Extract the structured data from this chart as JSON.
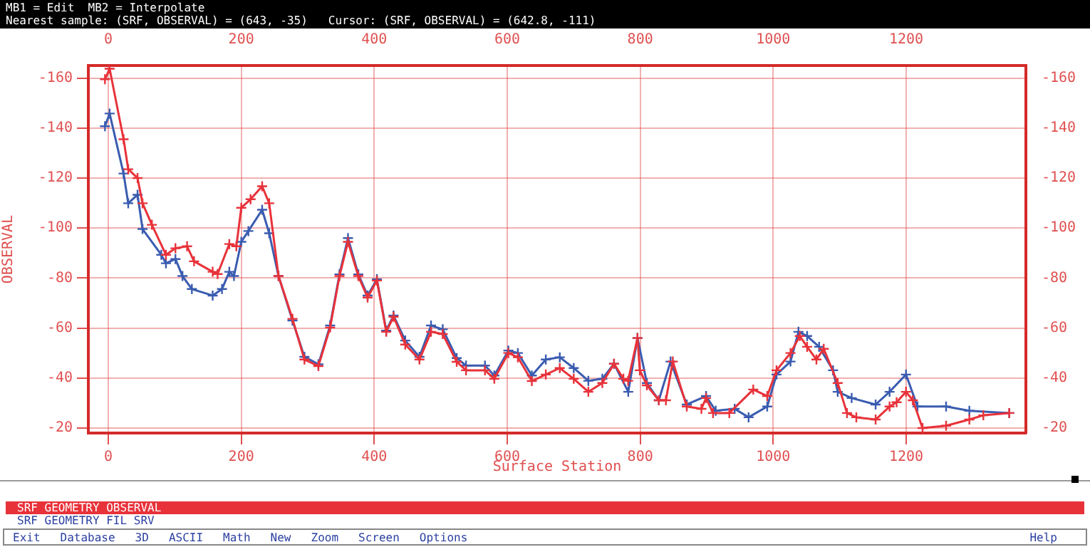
{
  "chart_data": {
    "type": "line",
    "title": "MB1 = Edit  MB2 = Interpolate",
    "subtitle": "Nearest sample: (SRF, OBSERVAL) = (643, -35)   Cursor: (SRF, OBSERVAL) = (642.8, -111)",
    "xlabel": "Surface Station",
    "ylabel": "OBSERVAL",
    "annotations": [
      "SRF GEOMETRY OBSERVAL",
      "SRF GEOMETRY FIL SRV",
      "Exit",
      "Database",
      "3D",
      "ASCII",
      "Math",
      "New",
      "Zoom",
      "Screen",
      "Options",
      "Help"
    ],
    "series": [
      {
        "color": "#e8323a",
        "marker": "cross",
        "x": [
          -5,
          2,
          23,
          30,
          44,
          51.5,
          65.6,
          86.7,
          101,
          118.5,
          129,
          157,
          164.4,
          182,
          192.6,
          200,
          214,
          231.4,
          242,
          256,
          277,
          295,
          316,
          333.6,
          347.7,
          360.5,
          376,
          390,
          404,
          418,
          429,
          446.6,
          468,
          485.4,
          503,
          524,
          538,
          566.5,
          580.6,
          601.7,
          616,
          637,
          658,
          679,
          700,
          722,
          743,
          760.6,
          774.7,
          781.8,
          795.9,
          799.4,
          810,
          828,
          838.6,
          849,
          870,
          892,
          899,
          909.5,
          934,
          970,
          991,
          1005,
          1026,
          1040,
          1051,
          1065,
          1076,
          1097,
          1111,
          1125,
          1154,
          1175,
          1185.6,
          1199.7,
          1210,
          1224.6,
          1260,
          1295,
          1316,
          1355
        ],
        "values": [
          -159.5,
          -163.7,
          -135.5,
          -123.5,
          -120,
          -109.9,
          -101.3,
          -89.3,
          -91.9,
          -92.7,
          -86.7,
          -82.5,
          -81.6,
          -93.6,
          -92.7,
          -108.1,
          -111.5,
          -116.7,
          -109.9,
          -80.8,
          -63.7,
          -47.4,
          -44.8,
          -60.2,
          -80.8,
          -94.5,
          -80.8,
          -72.2,
          -79,
          -58.5,
          -64.5,
          -53.4,
          -47.4,
          -58.5,
          -57.6,
          -46.5,
          -43.1,
          -43.1,
          -39.7,
          -50,
          -48.3,
          -38.8,
          -41.4,
          -44,
          -39.7,
          -34.5,
          -38,
          -45.7,
          -39.7,
          -38.9,
          -56,
          -43.1,
          -37.1,
          -31.1,
          -31.1,
          -46.6,
          -28.6,
          -27.7,
          -32,
          -26,
          -26,
          -35.4,
          -32.8,
          -43.1,
          -50,
          -56.8,
          -52.5,
          -47.4,
          -51.7,
          -38,
          -26,
          -24.3,
          -23.4,
          -28.6,
          -30.3,
          -34.5,
          -31.1,
          -20,
          -20.9,
          -23.4,
          -25.1,
          -26
        ]
      },
      {
        "color": "#3a5cb0",
        "marker": "cross",
        "x": [
          -5,
          2,
          23,
          30,
          44,
          51.5,
          79.7,
          86.7,
          101,
          111.6,
          125.7,
          157,
          171,
          182,
          189,
          200,
          210.7,
          231.4,
          242,
          256,
          277,
          295,
          316,
          333.6,
          347.7,
          360.5,
          376,
          390,
          404,
          418,
          429,
          446.6,
          468,
          485.4,
          503,
          524,
          538,
          566.5,
          580.6,
          601.7,
          616,
          637,
          658,
          679,
          700,
          722,
          743,
          760.6,
          782,
          795.9,
          810,
          828,
          845.6,
          870,
          899,
          913.5,
          942,
          963,
          991,
          1005,
          1026,
          1038,
          1051,
          1069,
          1090,
          1097,
          1118,
          1154,
          1175,
          1199.7,
          1217,
          1260,
          1295,
          1355
        ],
        "values": [
          -140.7,
          -145.8,
          -121.8,
          -109.9,
          -113.3,
          -99.6,
          -89.3,
          -85.9,
          -87.6,
          -80.8,
          -75.6,
          -73,
          -75.6,
          -82.5,
          -80.8,
          -94.5,
          -98.8,
          -107.3,
          -97.9,
          -80.8,
          -63,
          -48.5,
          -45.5,
          -61,
          -81.5,
          -96,
          -81.5,
          -73,
          -79.5,
          -59,
          -65,
          -55,
          -48.5,
          -61,
          -59.5,
          -48,
          -45,
          -45,
          -41,
          -51,
          -50,
          -41,
          -47.4,
          -48.3,
          -44,
          -38.9,
          -39.7,
          -45.7,
          -34.5,
          -56,
          -38,
          -31.1,
          -46.6,
          -29.4,
          -32.8,
          -26.9,
          -27.7,
          -24.3,
          -28.6,
          -41.4,
          -46.6,
          -58.5,
          -56.8,
          -52.5,
          -43.1,
          -34.5,
          -32,
          -29.4,
          -34.5,
          -41.4,
          -28.6,
          -28.6,
          -26.9,
          -26
        ]
      }
    ],
    "xlim": [
      -30,
      1380
    ],
    "xticks": [
      0,
      200,
      400,
      600,
      800,
      1000,
      1200
    ],
    "x2lim": [
      -30,
      1380
    ],
    "x2ticks": [
      0,
      200,
      400,
      600,
      800,
      1000,
      1200
    ],
    "ylim": [
      -18,
      -165
    ],
    "yticks": [
      -160,
      -140,
      -120,
      -100,
      -80,
      -60,
      -40,
      -20
    ],
    "y2lim": [
      -18,
      -165
    ],
    "y2ticks": [
      -160,
      -140,
      -120,
      -100,
      -80,
      -60,
      -40,
      -20
    ],
    "grid": true,
    "legend": false
  }
}
